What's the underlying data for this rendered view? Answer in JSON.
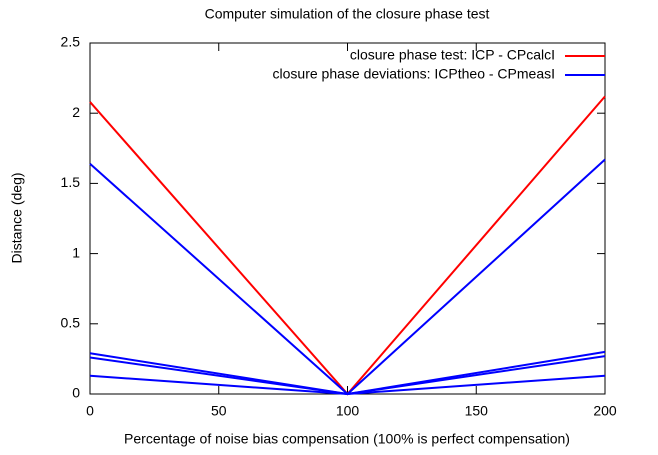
{
  "chart_data": {
    "type": "line",
    "title": "Computer simulation of the closure phase test",
    "x_label": "Percentage of noise bias compensation (100% is perfect compensation)",
    "y_label": "Distance (deg)",
    "x": [
      0,
      100,
      200
    ],
    "series": [
      {
        "name": "closure phase test: ICP - CPcalcI",
        "color": "#ff0000",
        "values": [
          2.08,
          0,
          2.12
        ]
      },
      {
        "name": "closure phase deviations: ICPtheo - CPmeasI",
        "color": "#0000ff",
        "values": [
          1.64,
          0,
          1.67
        ]
      },
      {
        "color": "#0000ff",
        "values": [
          0.29,
          0,
          0.3
        ]
      },
      {
        "color": "#0000ff",
        "values": [
          0.26,
          0,
          0.27
        ]
      },
      {
        "color": "#0000ff",
        "values": [
          0.13,
          0,
          0.13
        ]
      }
    ],
    "xlim": [
      0,
      200
    ],
    "xticks": [
      0,
      50,
      100,
      150,
      200
    ],
    "ylim": [
      0,
      2.5
    ],
    "yticks": [
      0,
      0.5,
      1,
      1.5,
      2,
      2.5
    ],
    "grid": false,
    "legend": "top-right"
  }
}
